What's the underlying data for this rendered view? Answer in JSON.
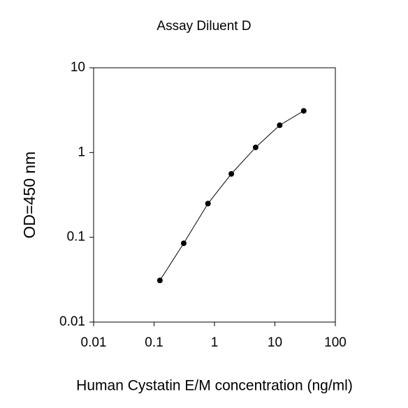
{
  "chart_data": {
    "type": "line",
    "title": "Assay Diluent D",
    "x_label": "Human Cystatin E/M concentration (ng/ml)",
    "y_label": "OD=450 nm",
    "x": [
      0.125,
      0.31,
      0.78,
      1.9,
      4.8,
      12,
      30
    ],
    "values": [
      0.031,
      0.085,
      0.25,
      0.56,
      1.15,
      2.1,
      3.1
    ],
    "color": "#000000",
    "marker": "circle",
    "xscale": "log",
    "yscale": "log",
    "xlim": [
      0.01,
      100
    ],
    "ylim": [
      0.01,
      10
    ],
    "xticks": [
      0.01,
      0.1,
      1,
      10,
      100
    ],
    "yticks": [
      0.01,
      0.1,
      1,
      10
    ],
    "grid": false
  }
}
